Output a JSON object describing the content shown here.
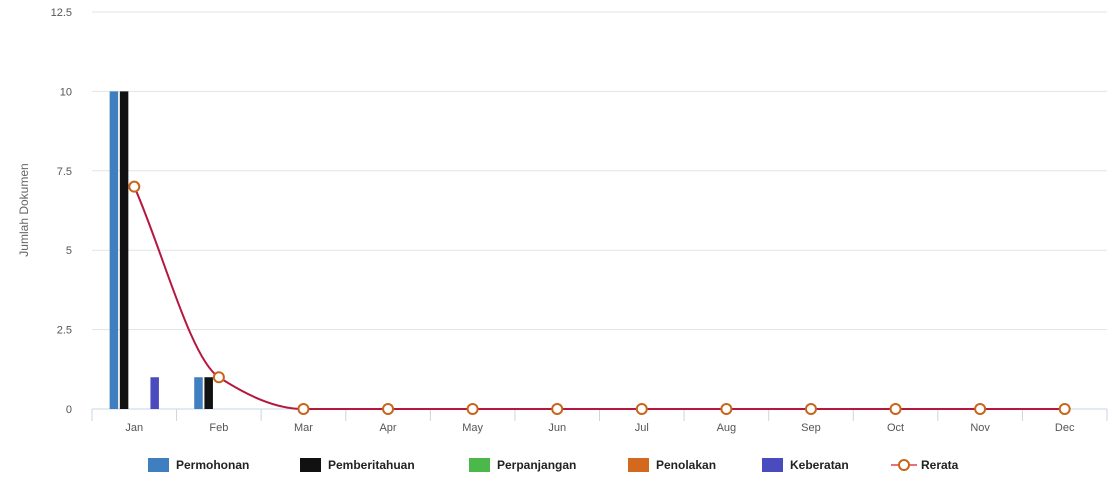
{
  "chart_data": {
    "type": "bar",
    "title": "",
    "xlabel": "",
    "ylabel": "Jumlah Dokumen",
    "ylim": [
      0,
      12.5
    ],
    "yticks": [
      "0",
      "2.5",
      "5",
      "7.5",
      "10",
      "12.5"
    ],
    "grid": true,
    "legend_position": "bottom",
    "categories": [
      "Jan",
      "Feb",
      "Mar",
      "Apr",
      "May",
      "Jun",
      "Jul",
      "Aug",
      "Sep",
      "Oct",
      "Nov",
      "Dec"
    ],
    "series": [
      {
        "name": "Permohonan",
        "type": "bar",
        "color": "#3f7fbf",
        "values": [
          10,
          1,
          0,
          0,
          0,
          0,
          0,
          0,
          0,
          0,
          0,
          0
        ]
      },
      {
        "name": "Pemberitahuan",
        "type": "bar",
        "color": "#111111",
        "values": [
          10,
          1,
          0,
          0,
          0,
          0,
          0,
          0,
          0,
          0,
          0,
          0
        ]
      },
      {
        "name": "Perpanjangan",
        "type": "bar",
        "color": "#4cb84c",
        "values": [
          0,
          0,
          0,
          0,
          0,
          0,
          0,
          0,
          0,
          0,
          0,
          0
        ]
      },
      {
        "name": "Penolakan",
        "type": "bar",
        "color": "#d2691e",
        "values": [
          0,
          0,
          0,
          0,
          0,
          0,
          0,
          0,
          0,
          0,
          0,
          0
        ]
      },
      {
        "name": "Keberatan",
        "type": "bar",
        "color": "#4b4bc0",
        "values": [
          1,
          0,
          0,
          0,
          0,
          0,
          0,
          0,
          0,
          0,
          0,
          0
        ]
      },
      {
        "name": "Rerata",
        "type": "line",
        "color": "#b5173f",
        "marker_color": "#c8651a",
        "values": [
          7,
          1,
          0,
          0,
          0,
          0,
          0,
          0,
          0,
          0,
          0,
          0
        ]
      }
    ]
  }
}
